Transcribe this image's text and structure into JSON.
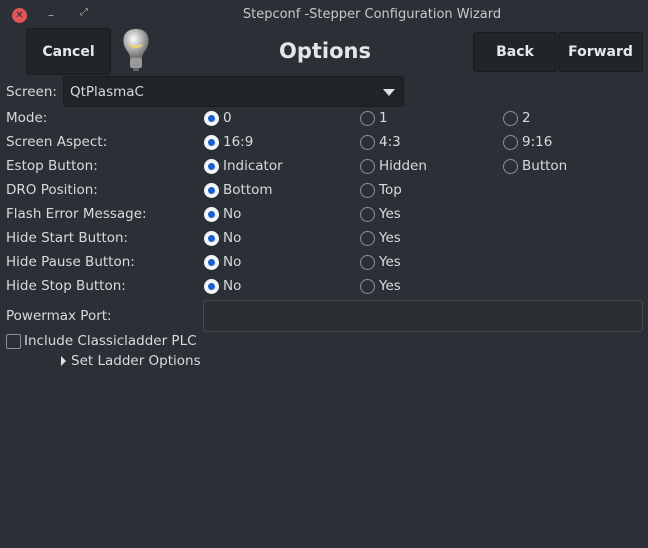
{
  "window": {
    "title": "Stepconf -Stepper Configuration Wizard"
  },
  "header": {
    "cancel": "Cancel",
    "title": "Options",
    "back": "Back",
    "forward": "Forward",
    "icon": "lightbulb-icon"
  },
  "screen": {
    "label": "Screen:",
    "value": "QtPlasmaC"
  },
  "rows": [
    {
      "label": "Mode:",
      "options": [
        "0",
        "1",
        "2"
      ],
      "selected": 0
    },
    {
      "label": "Screen Aspect:",
      "options": [
        "16:9",
        "4:3",
        "9:16"
      ],
      "selected": 0
    },
    {
      "label": "Estop Button:",
      "options": [
        "Indicator",
        "Hidden",
        "Button"
      ],
      "selected": 0
    },
    {
      "label": "DRO Position:",
      "options": [
        "Bottom",
        "Top"
      ],
      "selected": 0
    },
    {
      "label": "Flash Error Message:",
      "options": [
        "No",
        "Yes"
      ],
      "selected": 0
    },
    {
      "label": "Hide Start Button:",
      "options": [
        "No",
        "Yes"
      ],
      "selected": 0
    },
    {
      "label": "Hide Pause Button:",
      "options": [
        "No",
        "Yes"
      ],
      "selected": 0
    },
    {
      "label": "Hide Stop Button:",
      "options": [
        "No",
        "Yes"
      ],
      "selected": 0
    }
  ],
  "powermax": {
    "label": "Powermax Port:",
    "value": ""
  },
  "classicladder": {
    "label": "Include Classicladder PLC",
    "checked": false
  },
  "ladder_options": {
    "label": "Set Ladder Options"
  },
  "colors": {
    "background": "#2b3036",
    "radio_accent": "#1f5fd6",
    "close": "#e0545a"
  }
}
